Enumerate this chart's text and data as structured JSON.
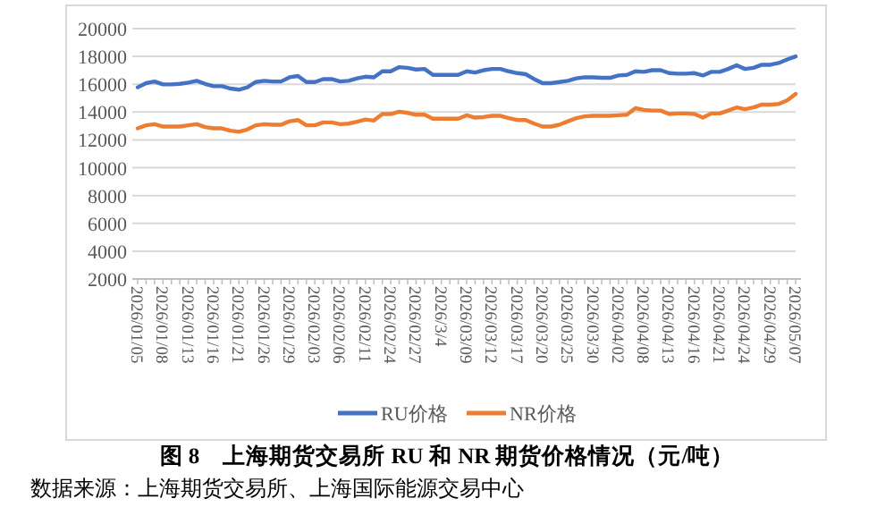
{
  "chart_data": {
    "type": "line",
    "title": "图 8　上海期货交易所 RU 和 NR 期货价格情况（元/吨）",
    "annotations": [
      "数据来源：上海期货交易所、上海国际能源交易中心"
    ],
    "categories": [
      "2026/01/05",
      null,
      null,
      "2026/01/08",
      null,
      null,
      "2026/01/13",
      null,
      null,
      "2026/01/16",
      null,
      null,
      "2026/01/21",
      null,
      null,
      "2026/01/26",
      null,
      null,
      "2026/01/29",
      null,
      null,
      "2026/02/03",
      null,
      null,
      "2026/02/06",
      null,
      null,
      "2026/02/11",
      null,
      null,
      "2026/02/24",
      null,
      null,
      "2026/02/27",
      null,
      null,
      "2026/3/4",
      null,
      null,
      "2026/03/09",
      null,
      null,
      "2026/03/12",
      null,
      null,
      "2026/03/17",
      null,
      null,
      "2026/03/20",
      null,
      null,
      "2026/03/25",
      null,
      null,
      "2026/03/30",
      null,
      null,
      "2026/04/02",
      null,
      null,
      "2026/04/08",
      null,
      null,
      "2026/04/13",
      null,
      null,
      "2026/04/16",
      null,
      null,
      "2026/04/21",
      null,
      null,
      "2026/04/24",
      null,
      null,
      "2026/04/29",
      null,
      null,
      "2026/05/07"
    ],
    "series": [
      {
        "name": "RU价格",
        "color": "#4472c4",
        "values": [
          15780,
          16080,
          16200,
          15990,
          15990,
          16030,
          16120,
          16250,
          16030,
          15860,
          15860,
          15690,
          15610,
          15780,
          16160,
          16250,
          16200,
          16200,
          16500,
          16590,
          16160,
          16160,
          16370,
          16370,
          16200,
          16250,
          16420,
          16540,
          16500,
          16930,
          16930,
          17230,
          17180,
          17060,
          17100,
          16670,
          16670,
          16670,
          16670,
          16930,
          16840,
          17010,
          17100,
          17100,
          16930,
          16800,
          16720,
          16370,
          16080,
          16080,
          16160,
          16250,
          16420,
          16500,
          16500,
          16460,
          16460,
          16630,
          16670,
          16930,
          16890,
          17010,
          17010,
          16800,
          16760,
          16760,
          16800,
          16630,
          16890,
          16890,
          17100,
          17360,
          17100,
          17180,
          17400,
          17400,
          17530,
          17780,
          18000
        ]
      },
      {
        "name": "NR价格",
        "color": "#ed7d31",
        "values": [
          12830,
          13050,
          13130,
          12960,
          12960,
          12960,
          13050,
          13130,
          12920,
          12830,
          12830,
          12660,
          12580,
          12750,
          13050,
          13130,
          13090,
          13090,
          13340,
          13430,
          13050,
          13050,
          13260,
          13260,
          13130,
          13170,
          13300,
          13470,
          13390,
          13860,
          13860,
          14030,
          13940,
          13810,
          13810,
          13520,
          13520,
          13520,
          13520,
          13770,
          13600,
          13640,
          13730,
          13730,
          13560,
          13430,
          13430,
          13170,
          12960,
          12960,
          13090,
          13340,
          13560,
          13690,
          13730,
          13730,
          13730,
          13770,
          13810,
          14280,
          14160,
          14110,
          14110,
          13860,
          13900,
          13900,
          13860,
          13600,
          13900,
          13900,
          14110,
          14330,
          14200,
          14330,
          14540,
          14540,
          14580,
          14840,
          15310
        ]
      }
    ],
    "ylim": [
      2000,
      20000
    ],
    "yticks": [
      2000,
      4000,
      6000,
      8000,
      10000,
      12000,
      14000,
      16000,
      18000,
      20000
    ],
    "grid": "y",
    "legend": "bottom"
  }
}
